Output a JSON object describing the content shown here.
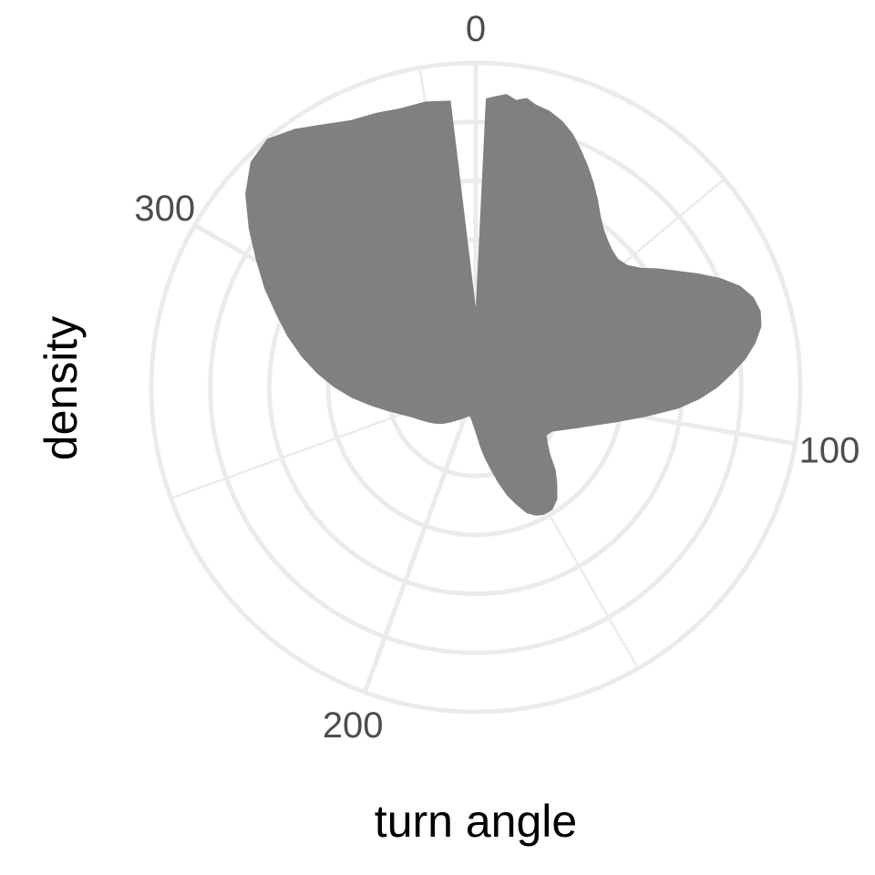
{
  "chart_data": {
    "type": "area",
    "coord": "polar",
    "title": "",
    "xlabel": "turn angle",
    "ylabel": "density",
    "x_range": [
      0,
      360
    ],
    "x_ticks": [
      0,
      100,
      200,
      300
    ],
    "x_tick_labels": [
      "0",
      "100",
      "200",
      "300"
    ],
    "x_minor_ticks": [
      50,
      150,
      250,
      350
    ],
    "radial_gridlines": [
      0.5,
      1.5,
      2.5,
      3.5,
      4.5,
      5.5
    ],
    "radial_max": 5.5,
    "grid": true,
    "legend": "none",
    "fill_color": "#808080",
    "series": [
      {
        "x": [
          0,
          2,
          4,
          6,
          8,
          10,
          12,
          15,
          18,
          21,
          24,
          27,
          30,
          33,
          36,
          39,
          42,
          45,
          48,
          51,
          54,
          57,
          60,
          63,
          66,
          69,
          72,
          75,
          78,
          81,
          84,
          87,
          90,
          93,
          96,
          100,
          104,
          108,
          112,
          116,
          120,
          124,
          128,
          132,
          136,
          140,
          144,
          148,
          152,
          155,
          158,
          161,
          164,
          167,
          170,
          173,
          176,
          179,
          182,
          185,
          188,
          192,
          196,
          200,
          205,
          210,
          215,
          220,
          225,
          230,
          235,
          240,
          245,
          250,
          255,
          260,
          265,
          270,
          275,
          280,
          285,
          290,
          295,
          300,
          305,
          310,
          315,
          320,
          325,
          330,
          335,
          340,
          345,
          350,
          355,
          360
        ],
        "y": [
          1.35,
          4.9,
          4.95,
          5.0,
          4.92,
          4.98,
          4.9,
          4.85,
          4.75,
          4.6,
          4.4,
          4.2,
          4.0,
          3.8,
          3.6,
          3.45,
          3.35,
          3.28,
          3.25,
          3.3,
          3.45,
          3.7,
          3.95,
          4.25,
          4.55,
          4.8,
          4.95,
          5.0,
          4.95,
          4.8,
          4.6,
          4.35,
          4.1,
          3.8,
          3.45,
          2.9,
          2.45,
          2.1,
          1.85,
          1.65,
          1.5,
          1.45,
          1.55,
          1.7,
          1.95,
          2.15,
          2.35,
          2.45,
          2.45,
          2.4,
          2.3,
          2.1,
          1.9,
          1.65,
          1.4,
          1.2,
          1.0,
          0.82,
          0.7,
          0.62,
          0.55,
          0.5,
          0.52,
          0.55,
          0.6,
          0.65,
          0.72,
          0.8,
          0.88,
          0.95,
          1.02,
          1.1,
          1.2,
          1.35,
          1.55,
          1.8,
          2.1,
          2.4,
          2.7,
          3.0,
          3.3,
          3.6,
          3.95,
          4.3,
          4.7,
          5.1,
          5.4,
          5.5,
          5.35,
          5.15,
          5.0,
          4.95,
          4.9,
          4.92,
          4.88,
          1.35
        ]
      }
    ]
  }
}
